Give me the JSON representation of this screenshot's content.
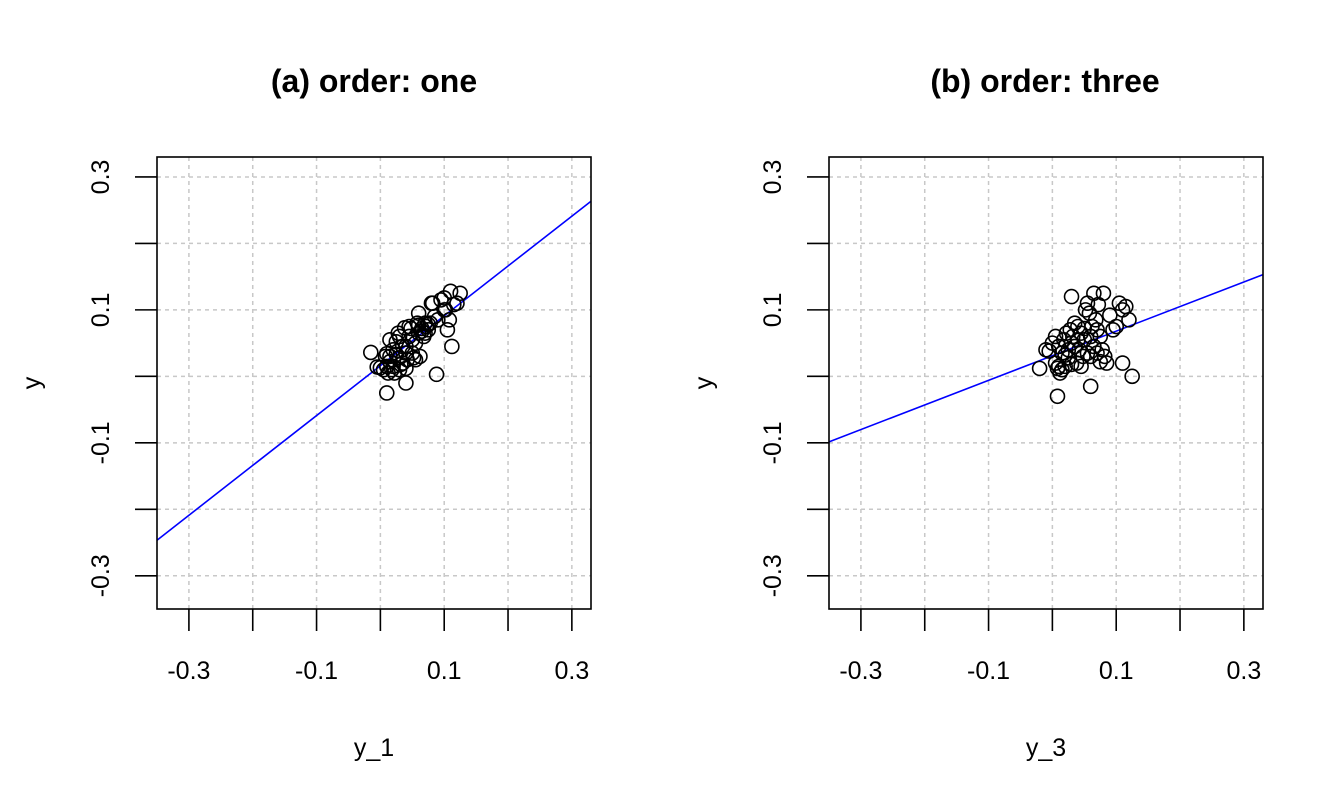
{
  "chart_data": [
    {
      "type": "scatter",
      "title": "(a) order: one",
      "xlabel": "y_1",
      "ylabel": "y",
      "xlim": [
        -0.35,
        0.33
      ],
      "ylim": [
        -0.35,
        0.33
      ],
      "xticks": [
        -0.3,
        -0.2,
        -0.1,
        0.0,
        0.1,
        0.2,
        0.3
      ],
      "yticks": [
        -0.3,
        -0.2,
        -0.1,
        0.0,
        0.1,
        0.2,
        0.3
      ],
      "xtick_labels": [
        "-0.3",
        "",
        "-0.1",
        "",
        "0.1",
        "",
        "0.3"
      ],
      "ytick_labels": [
        "-0.3",
        "",
        "-0.1",
        "",
        "0.1",
        "",
        "0.3"
      ],
      "grid": true,
      "fit_line": {
        "slope": 0.75,
        "intercept": 0.016,
        "color": "#0000ff"
      },
      "points": {
        "x": [
          -0.015,
          -0.005,
          0.0,
          0.005,
          0.008,
          0.01,
          0.01,
          0.012,
          0.015,
          0.015,
          0.018,
          0.02,
          0.02,
          0.022,
          0.025,
          0.025,
          0.028,
          0.03,
          0.03,
          0.03,
          0.032,
          0.035,
          0.035,
          0.038,
          0.04,
          0.04,
          0.04,
          0.042,
          0.045,
          0.045,
          0.048,
          0.05,
          0.05,
          0.052,
          0.055,
          0.055,
          0.058,
          0.06,
          0.06,
          0.06,
          0.062,
          0.065,
          0.065,
          0.068,
          0.07,
          0.07,
          0.072,
          0.075,
          0.075,
          0.078,
          0.08,
          0.082,
          0.085,
          0.088,
          0.09,
          0.095,
          0.1,
          0.1,
          0.102,
          0.105,
          0.108,
          0.11,
          0.112,
          0.115,
          0.12,
          0.125,
          0.01,
          0.015,
          0.04
        ],
        "y": [
          0.036,
          0.014,
          0.013,
          0.01,
          0.03,
          0.015,
          0.034,
          0.005,
          0.055,
          0.022,
          0.01,
          0.015,
          0.04,
          0.005,
          0.033,
          0.052,
          0.065,
          0.028,
          0.06,
          0.01,
          0.018,
          0.02,
          0.045,
          0.073,
          0.045,
          0.035,
          0.012,
          0.025,
          0.06,
          0.075,
          0.072,
          0.055,
          0.035,
          0.028,
          0.05,
          0.025,
          0.08,
          0.065,
          0.077,
          0.095,
          0.03,
          0.072,
          0.068,
          0.06,
          0.065,
          0.08,
          0.075,
          0.07,
          0.078,
          0.08,
          0.11,
          0.11,
          0.09,
          0.003,
          0.085,
          0.115,
          0.118,
          0.1,
          0.1,
          0.07,
          0.085,
          0.128,
          0.045,
          0.108,
          0.11,
          0.125,
          -0.025,
          0.03,
          -0.01
        ]
      }
    },
    {
      "type": "scatter",
      "title": "(b) order: three",
      "xlabel": "y_3",
      "ylabel": "y",
      "xlim": [
        -0.35,
        0.33
      ],
      "ylim": [
        -0.35,
        0.33
      ],
      "xticks": [
        -0.3,
        -0.2,
        -0.1,
        0.0,
        0.1,
        0.2,
        0.3
      ],
      "yticks": [
        -0.3,
        -0.2,
        -0.1,
        0.0,
        0.1,
        0.2,
        0.3
      ],
      "xtick_labels": [
        "-0.3",
        "",
        "-0.1",
        "",
        "0.1",
        "",
        "0.3"
      ],
      "ytick_labels": [
        "-0.3",
        "",
        "-0.1",
        "",
        "0.1",
        "",
        "0.3"
      ],
      "grid": true,
      "fit_line": {
        "slope": 0.37,
        "intercept": 0.031,
        "color": "#0000ff"
      },
      "points": {
        "x": [
          -0.02,
          -0.01,
          -0.005,
          0.0,
          0.005,
          0.005,
          0.008,
          0.01,
          0.01,
          0.012,
          0.015,
          0.015,
          0.018,
          0.02,
          0.02,
          0.022,
          0.025,
          0.025,
          0.028,
          0.03,
          0.03,
          0.032,
          0.035,
          0.035,
          0.038,
          0.04,
          0.04,
          0.042,
          0.045,
          0.045,
          0.048,
          0.05,
          0.05,
          0.052,
          0.055,
          0.055,
          0.058,
          0.06,
          0.06,
          0.062,
          0.065,
          0.065,
          0.068,
          0.07,
          0.07,
          0.072,
          0.075,
          0.075,
          0.078,
          0.08,
          0.082,
          0.085,
          0.09,
          0.095,
          0.1,
          0.105,
          0.11,
          0.115,
          0.12,
          0.125,
          0.03,
          0.06,
          0.11,
          0.008
        ],
        "y": [
          0.012,
          0.04,
          0.038,
          0.05,
          0.02,
          0.06,
          0.012,
          0.015,
          0.045,
          0.005,
          0.035,
          0.01,
          0.055,
          0.032,
          0.015,
          0.065,
          0.04,
          0.028,
          0.07,
          0.018,
          0.05,
          0.06,
          0.08,
          0.045,
          0.02,
          0.075,
          0.055,
          0.04,
          0.065,
          0.015,
          0.03,
          0.072,
          0.055,
          0.1,
          0.11,
          0.035,
          0.095,
          0.06,
          0.03,
          0.075,
          0.125,
          0.045,
          0.085,
          0.07,
          0.035,
          0.108,
          0.06,
          0.022,
          0.04,
          0.125,
          0.03,
          0.02,
          0.092,
          0.07,
          0.075,
          0.11,
          0.1,
          0.105,
          0.085,
          0.0,
          0.12,
          -0.015,
          0.02,
          -0.03
        ]
      }
    }
  ]
}
